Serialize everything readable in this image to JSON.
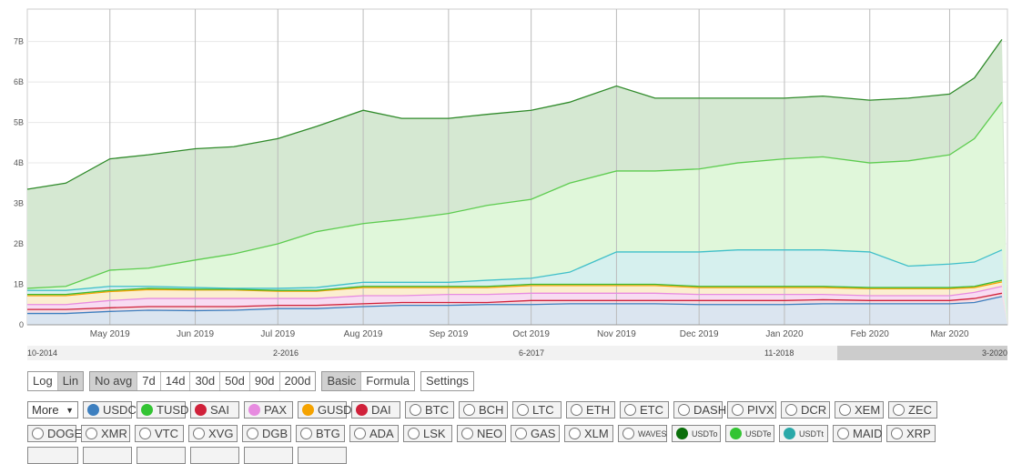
{
  "chart_data": {
    "type": "area",
    "stacked": true,
    "x": [
      "2019-04-01",
      "2019-04-15",
      "2019-05-01",
      "2019-05-15",
      "2019-06-01",
      "2019-06-15",
      "2019-07-01",
      "2019-07-15",
      "2019-08-01",
      "2019-08-15",
      "2019-09-01",
      "2019-09-15",
      "2019-10-01",
      "2019-10-15",
      "2019-11-01",
      "2019-11-15",
      "2019-12-01",
      "2019-12-15",
      "2020-01-01",
      "2020-01-15",
      "2020-02-01",
      "2020-02-15",
      "2020-03-01",
      "2020-03-10",
      "2020-03-20"
    ],
    "value_note_units": "B",
    "series": [
      {
        "name": "USDC",
        "color": "#3d7fbf",
        "fill": "#dbe5f0",
        "cumulative": [
          0.28,
          0.28,
          0.33,
          0.36,
          0.35,
          0.36,
          0.4,
          0.4,
          0.45,
          0.48,
          0.48,
          0.5,
          0.5,
          0.52,
          0.52,
          0.52,
          0.5,
          0.5,
          0.5,
          0.52,
          0.52,
          0.52,
          0.52,
          0.55,
          0.7
        ]
      },
      {
        "name": "DAI",
        "color": "#d0213a",
        "fill": "#f3dde4",
        "cumulative": [
          0.38,
          0.38,
          0.42,
          0.45,
          0.45,
          0.45,
          0.48,
          0.48,
          0.52,
          0.55,
          0.55,
          0.55,
          0.6,
          0.6,
          0.6,
          0.6,
          0.6,
          0.6,
          0.6,
          0.62,
          0.6,
          0.6,
          0.6,
          0.65,
          0.78
        ]
      },
      {
        "name": "PAX",
        "color": "#e78be0",
        "fill": "#f8dcf2",
        "cumulative": [
          0.5,
          0.5,
          0.6,
          0.65,
          0.65,
          0.65,
          0.65,
          0.65,
          0.72,
          0.72,
          0.75,
          0.75,
          0.78,
          0.78,
          0.78,
          0.78,
          0.75,
          0.75,
          0.75,
          0.75,
          0.72,
          0.72,
          0.72,
          0.8,
          0.95
        ]
      },
      {
        "name": "GUSD",
        "color": "#f5a300",
        "fill": "#fbeed0",
        "cumulative": [
          0.72,
          0.72,
          0.82,
          0.87,
          0.86,
          0.86,
          0.83,
          0.83,
          0.92,
          0.92,
          0.92,
          0.92,
          0.97,
          0.97,
          0.97,
          0.97,
          0.92,
          0.92,
          0.92,
          0.92,
          0.89,
          0.89,
          0.89,
          0.92,
          1.06
        ]
      },
      {
        "name": "TUSD",
        "color": "#3cb832",
        "fill": "#e2f6dc",
        "cumulative": [
          0.75,
          0.75,
          0.85,
          0.9,
          0.88,
          0.88,
          0.85,
          0.85,
          0.95,
          0.95,
          0.95,
          0.95,
          1.0,
          1.0,
          1.0,
          1.0,
          0.95,
          0.95,
          0.95,
          0.95,
          0.92,
          0.92,
          0.92,
          0.95,
          1.1
        ]
      },
      {
        "name": "USDTt",
        "color": "#3fbfc9",
        "fill": "#d6f0ee",
        "cumulative": [
          0.85,
          0.85,
          0.95,
          0.95,
          0.92,
          0.9,
          0.9,
          0.92,
          1.05,
          1.05,
          1.05,
          1.1,
          1.15,
          1.3,
          1.8,
          1.8,
          1.8,
          1.85,
          1.85,
          1.85,
          1.8,
          1.45,
          1.5,
          1.55,
          1.85
        ]
      },
      {
        "name": "USDTe",
        "color": "#5dcc4f",
        "fill": "#e0f7da",
        "cumulative": [
          0.9,
          0.95,
          1.35,
          1.4,
          1.6,
          1.75,
          2.0,
          2.3,
          2.5,
          2.6,
          2.75,
          2.95,
          3.1,
          3.5,
          3.8,
          3.8,
          3.85,
          4.0,
          4.1,
          4.15,
          4.0,
          4.05,
          4.2,
          4.6,
          5.5
        ]
      },
      {
        "name": "USDTo",
        "color": "#2f8a2a",
        "fill": "#d5e8d2",
        "cumulative": [
          3.35,
          3.5,
          4.1,
          4.2,
          4.35,
          4.4,
          4.6,
          4.9,
          5.3,
          5.1,
          5.1,
          5.2,
          5.3,
          5.5,
          5.9,
          5.6,
          5.6,
          5.6,
          5.6,
          5.65,
          5.55,
          5.6,
          5.7,
          6.1,
          7.05
        ]
      }
    ],
    "yticks": [
      "0",
      "1B",
      "2B",
      "3B",
      "4B",
      "5B",
      "6B",
      "7B"
    ],
    "ylim": [
      0,
      7.8
    ],
    "xticks": [
      {
        "label": "May 2019",
        "date": "2019-05-01"
      },
      {
        "label": "Jun 2019",
        "date": "2019-06-01"
      },
      {
        "label": "Jul 2019",
        "date": "2019-07-01"
      },
      {
        "label": "Aug 2019",
        "date": "2019-08-01"
      },
      {
        "label": "Sep 2019",
        "date": "2019-09-01"
      },
      {
        "label": "Oct 2019",
        "date": "2019-10-01"
      },
      {
        "label": "Nov 2019",
        "date": "2019-11-01"
      },
      {
        "label": "Dec 2019",
        "date": "2019-12-01"
      },
      {
        "label": "Jan 2020",
        "date": "2020-01-01"
      },
      {
        "label": "Feb 2020",
        "date": "2020-02-01"
      },
      {
        "label": "Mar 2020",
        "date": "2020-03-01"
      }
    ],
    "xlim": [
      "2019-04-01",
      "2020-03-22"
    ],
    "grid": true
  },
  "navigator": {
    "labels": [
      "10-2014",
      "2-2016",
      "6-2017",
      "11-2018",
      "3-2020"
    ]
  },
  "controls": {
    "scale": [
      "Log",
      "Lin"
    ],
    "scale_active": "Lin",
    "avg": [
      "No avg",
      "7d",
      "14d",
      "30d",
      "50d",
      "90d",
      "200d"
    ],
    "avg_active": "No avg",
    "mode": [
      "Basic",
      "Formula"
    ],
    "mode_active": "Basic",
    "settings": "Settings",
    "more": "More"
  },
  "coins_row1": [
    {
      "n": "USDC",
      "c": "#3d7fbf"
    },
    {
      "n": "TUSD",
      "c": "#33c433"
    },
    {
      "n": "SAI",
      "c": "#d0213a"
    },
    {
      "n": "PAX",
      "c": "#e78be0"
    },
    {
      "n": "GUSD",
      "c": "#f5a300"
    },
    {
      "n": "DAI",
      "c": "#d0213a"
    },
    {
      "n": "BTC"
    },
    {
      "n": "BCH"
    },
    {
      "n": "LTC"
    },
    {
      "n": "ETH"
    },
    {
      "n": "ETC"
    },
    {
      "n": "DASH"
    },
    {
      "n": "PIVX"
    },
    {
      "n": "DCR"
    },
    {
      "n": "XEM"
    },
    {
      "n": "ZEC"
    }
  ],
  "coins_row2": [
    {
      "n": "DOGE"
    },
    {
      "n": "XMR"
    },
    {
      "n": "VTC"
    },
    {
      "n": "XVG"
    },
    {
      "n": "DGB"
    },
    {
      "n": "BTG"
    },
    {
      "n": "ADA"
    },
    {
      "n": "LSK"
    },
    {
      "n": "NEO"
    },
    {
      "n": "GAS"
    },
    {
      "n": "XLM"
    },
    {
      "n": "WAVES",
      "s": 1
    },
    {
      "n": "USDTo",
      "c": "#0a6e0a",
      "s": 1
    },
    {
      "n": "USDTe",
      "c": "#33c433",
      "s": 1
    },
    {
      "n": "USDTt",
      "c": "#2aa9a9",
      "s": 1
    },
    {
      "n": "MAID"
    },
    {
      "n": "XRP"
    }
  ]
}
